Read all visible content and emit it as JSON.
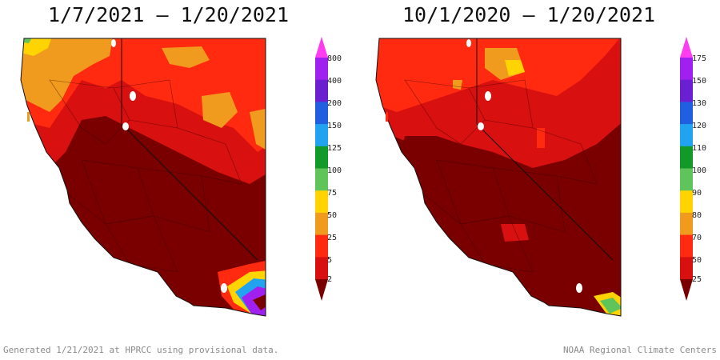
{
  "panels": [
    {
      "title": "1/7/2021 – 1/20/2021",
      "scale_labels": [
        "800",
        "400",
        "200",
        "150",
        "125",
        "100",
        "75",
        "50",
        "25",
        "5",
        "2"
      ]
    },
    {
      "title": "10/1/2020 – 1/20/2021",
      "scale_labels": [
        "175",
        "150",
        "130",
        "120",
        "110",
        "100",
        "90",
        "80",
        "70",
        "50",
        "25"
      ]
    }
  ],
  "scale_colors": [
    "#ff3df0",
    "#a020f0",
    "#6a1fd0",
    "#2060e0",
    "#22a3f0",
    "#119a2a",
    "#5fc45a",
    "#ffd400",
    "#f09a1e",
    "#ff2a10",
    "#d81010",
    "#7a0000"
  ],
  "footer": {
    "left": "Generated 1/21/2021 at HPRCC using provisional data.",
    "right": "NOAA Regional Climate Centers"
  }
}
